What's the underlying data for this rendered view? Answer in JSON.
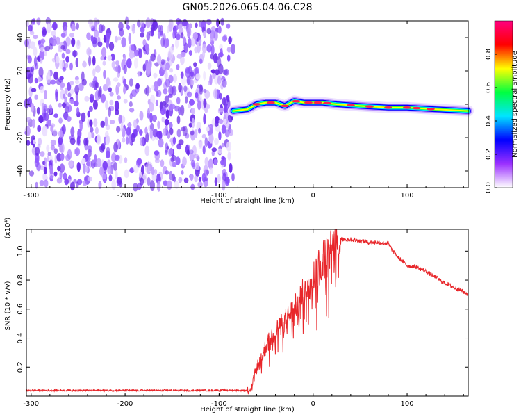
{
  "chart_data": [
    {
      "type": "heatmap",
      "title": "GN05.2026.065.04.06.C28",
      "xlabel": "Height of straight line (km)",
      "ylabel": "Frequency (Hz)",
      "xlim": [
        -305,
        165
      ],
      "ylim": [
        -50,
        50
      ],
      "x_ticks": [
        "-300",
        "-200",
        "-100",
        "0",
        "100"
      ],
      "y_ticks": [
        "-40",
        "-20",
        "0",
        "20",
        "40"
      ],
      "colorbar": {
        "label": "Normalized spectral amplitude",
        "range": [
          0.0,
          1.0
        ],
        "ticks": [
          "0.0",
          "0.2",
          "0.4",
          "0.6",
          "0.8"
        ],
        "colors": [
          "#ffffff",
          "#9b30ff",
          "#0000ff",
          "#00e5ff",
          "#00ff40",
          "#ffff00",
          "#ff0000",
          "#ff007f"
        ]
      },
      "noise_region_x": [
        -305,
        -85
      ],
      "signal_region_x": [
        -85,
        165
      ],
      "signal_line": [
        {
          "x": -85,
          "f": -4
        },
        {
          "x": -70,
          "f": -3
        },
        {
          "x": -60,
          "f": 0
        },
        {
          "x": -50,
          "f": 1
        },
        {
          "x": -40,
          "f": 1
        },
        {
          "x": -30,
          "f": -1
        },
        {
          "x": -20,
          "f": 2
        },
        {
          "x": -10,
          "f": 1
        },
        {
          "x": 0,
          "f": 1
        },
        {
          "x": 10,
          "f": 1
        },
        {
          "x": 25,
          "f": 0
        },
        {
          "x": 50,
          "f": -1
        },
        {
          "x": 80,
          "f": -2
        },
        {
          "x": 100,
          "f": -2
        },
        {
          "x": 130,
          "f": -3
        },
        {
          "x": 165,
          "f": -4
        }
      ]
    },
    {
      "type": "line",
      "xlabel": "Height of straight line (km)",
      "ylabel": "SNR (10 * v/v)",
      "y_multiplier": "(x10⁴)",
      "xlim": [
        -305,
        165
      ],
      "ylim": [
        0,
        1.15
      ],
      "x_ticks": [
        "-300",
        "-200",
        "-100",
        "0",
        "100"
      ],
      "y_ticks": [
        "0.2",
        "0.4",
        "0.6",
        "0.8",
        "1.0"
      ],
      "series": [
        {
          "color": "#e8262a",
          "x": [
            -305,
            -250,
            -200,
            -150,
            -100,
            -70,
            -66,
            -60,
            -55,
            -50,
            -40,
            -30,
            -20,
            -10,
            0,
            10,
            20,
            25,
            30,
            40,
            50,
            60,
            70,
            80,
            85,
            90,
            95,
            100,
            110,
            120,
            130,
            140,
            150,
            160,
            165
          ],
          "y": [
            0.04,
            0.04,
            0.04,
            0.04,
            0.04,
            0.04,
            0.05,
            0.2,
            0.25,
            0.35,
            0.45,
            0.52,
            0.6,
            0.72,
            0.82,
            0.95,
            1.02,
            1.06,
            1.08,
            1.08,
            1.07,
            1.06,
            1.06,
            1.05,
            1.0,
            0.96,
            0.93,
            0.9,
            0.89,
            0.86,
            0.82,
            0.78,
            0.75,
            0.72,
            0.7
          ]
        }
      ]
    }
  ]
}
